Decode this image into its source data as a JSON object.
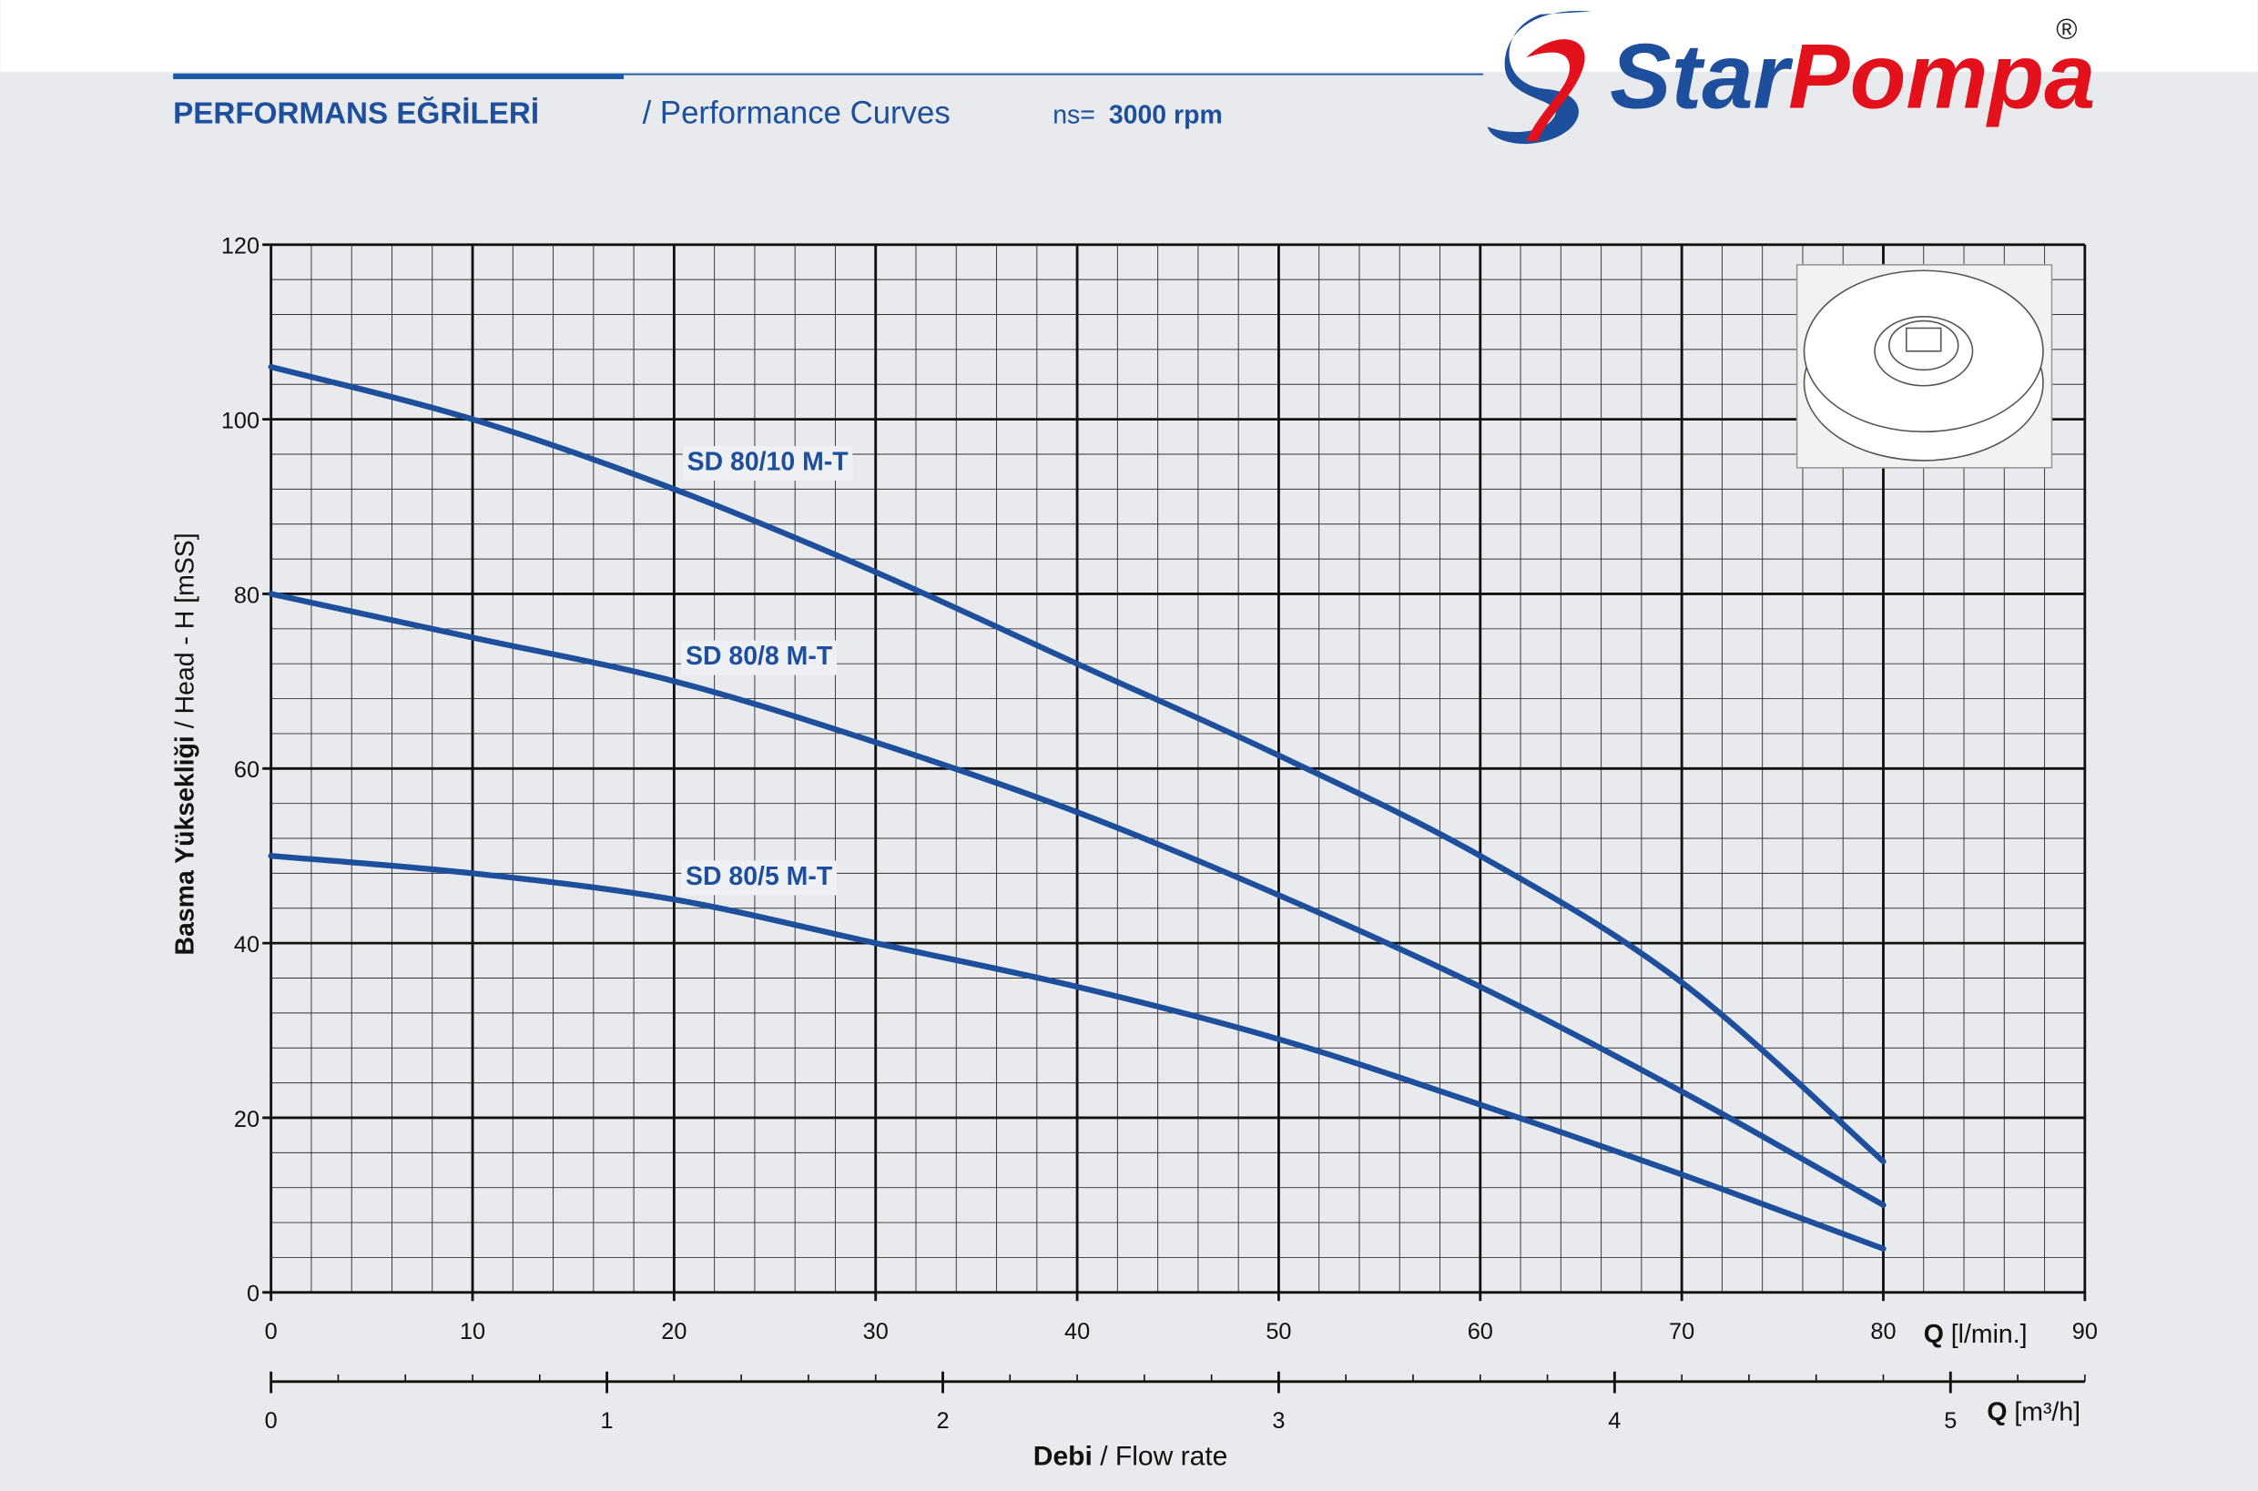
{
  "header": {
    "title": "PERFORMANS EĞRİLERİ",
    "subtitle": "/ Performance Curves",
    "speed_prefix": "ns=",
    "speed": "3000 rpm"
  },
  "logo": {
    "word1": "Star",
    "word2": "Pompa",
    "mark": "®"
  },
  "chart_data": {
    "type": "line",
    "ylabel_bold": "Basma Yüksekliği",
    "ylabel": "/ Head - H [mSS]",
    "xlabel_bold": "Q",
    "xlabel": "[l/min.]",
    "x2label_bold": "Q",
    "x2label": "[m³/h]",
    "footer_bold": "Debi",
    "footer": "/ Flow rate",
    "x": [
      0,
      10,
      20,
      30,
      40,
      50,
      60,
      70,
      80
    ],
    "series": [
      {
        "name": "SD 80/10 M-T",
        "color": "#1d4f9c",
        "values": [
          106,
          100,
          92,
          82.5,
          72,
          61.5,
          50,
          35.5,
          15
        ]
      },
      {
        "name": "SD 80/8 M-T",
        "color": "#1d4f9c",
        "values": [
          80,
          75,
          70,
          63,
          55,
          45.5,
          35,
          23,
          10
        ]
      },
      {
        "name": "SD 80/5 M-T",
        "color": "#1d4f9c",
        "values": [
          50,
          48,
          45,
          40,
          35,
          29,
          21.5,
          13.5,
          5
        ]
      }
    ],
    "xlim": [
      0,
      90
    ],
    "xticks": [
      0,
      10,
      20,
      30,
      40,
      50,
      60,
      70,
      80,
      90
    ],
    "xminor": 2,
    "ylim": [
      0,
      120
    ],
    "yticks": [
      0,
      20,
      40,
      60,
      80,
      100,
      120
    ],
    "yminor": 4,
    "x2lim": [
      0,
      5.4
    ],
    "x2ticks": [
      0,
      1,
      2,
      3,
      4,
      5
    ],
    "x2minor": 0.2,
    "grid": true
  }
}
